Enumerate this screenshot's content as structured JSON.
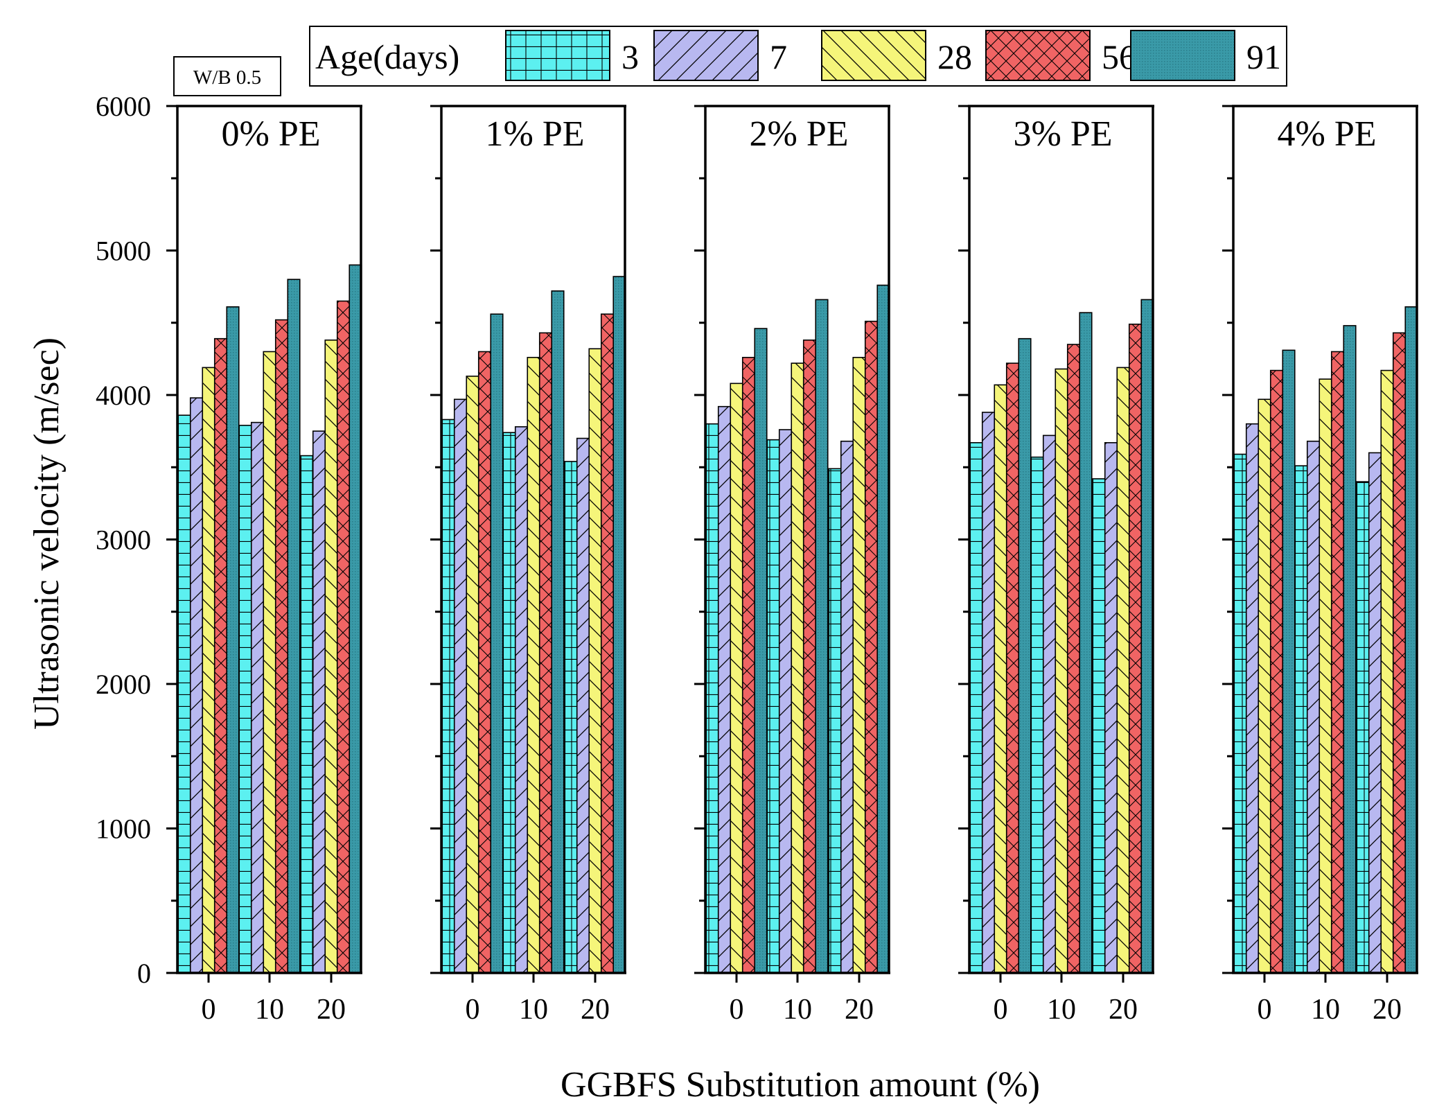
{
  "annotation": "W/B 0.5",
  "legend": {
    "title": "Age(days)",
    "series_labels": [
      "3",
      "7",
      "28",
      "56",
      "91"
    ]
  },
  "y_axis": {
    "label": "Ultrasonic velocity (m/sec)",
    "ticks": [
      "0",
      "1000",
      "2000",
      "3000",
      "4000",
      "5000",
      "6000"
    ]
  },
  "x_axis": {
    "label": "GGBFS Substitution amount (%)"
  },
  "colors": {
    "3": "#5cf0f0",
    "7": "#b8b8f0",
    "28": "#f5f57a",
    "56": "#f06464",
    "91": "#3a9aa8"
  },
  "chart_data": {
    "type": "bar",
    "ylabel": "Ultrasonic velocity (m/sec)",
    "xlabel": "GGBFS Substitution amount (%)",
    "ylim": [
      0,
      6000
    ],
    "categories": [
      "0",
      "10",
      "20"
    ],
    "legend_title": "Age(days)",
    "legend_position": "top",
    "panels": [
      {
        "title": "0% PE",
        "series": [
          {
            "name": "3",
            "values": [
              3860,
              3790,
              3580
            ]
          },
          {
            "name": "7",
            "values": [
              3980,
              3810,
              3750
            ]
          },
          {
            "name": "28",
            "values": [
              4190,
              4300,
              4380
            ]
          },
          {
            "name": "56",
            "values": [
              4390,
              4520,
              4650
            ]
          },
          {
            "name": "91",
            "values": [
              4610,
              4800,
              4900
            ]
          }
        ]
      },
      {
        "title": "1% PE",
        "series": [
          {
            "name": "3",
            "values": [
              3830,
              3740,
              3540
            ]
          },
          {
            "name": "7",
            "values": [
              3970,
              3780,
              3700
            ]
          },
          {
            "name": "28",
            "values": [
              4130,
              4260,
              4320
            ]
          },
          {
            "name": "56",
            "values": [
              4300,
              4430,
              4560
            ]
          },
          {
            "name": "91",
            "values": [
              4560,
              4720,
              4820
            ]
          }
        ]
      },
      {
        "title": "2% PE",
        "series": [
          {
            "name": "3",
            "values": [
              3800,
              3690,
              3490
            ]
          },
          {
            "name": "7",
            "values": [
              3920,
              3760,
              3680
            ]
          },
          {
            "name": "28",
            "values": [
              4080,
              4220,
              4260
            ]
          },
          {
            "name": "56",
            "values": [
              4260,
              4380,
              4510
            ]
          },
          {
            "name": "91",
            "values": [
              4460,
              4660,
              4760
            ]
          }
        ]
      },
      {
        "title": "3% PE",
        "series": [
          {
            "name": "3",
            "values": [
              3670,
              3570,
              3420
            ]
          },
          {
            "name": "7",
            "values": [
              3880,
              3720,
              3670
            ]
          },
          {
            "name": "28",
            "values": [
              4070,
              4180,
              4190
            ]
          },
          {
            "name": "56",
            "values": [
              4220,
              4350,
              4490
            ]
          },
          {
            "name": "91",
            "values": [
              4390,
              4570,
              4660
            ]
          }
        ]
      },
      {
        "title": "4% PE",
        "series": [
          {
            "name": "3",
            "values": [
              3590,
              3510,
              3400
            ]
          },
          {
            "name": "7",
            "values": [
              3800,
              3680,
              3600
            ]
          },
          {
            "name": "28",
            "values": [
              3970,
              4110,
              4170
            ]
          },
          {
            "name": "56",
            "values": [
              4170,
              4300,
              4430
            ]
          },
          {
            "name": "91",
            "values": [
              4310,
              4480,
              4610
            ]
          }
        ]
      }
    ]
  }
}
